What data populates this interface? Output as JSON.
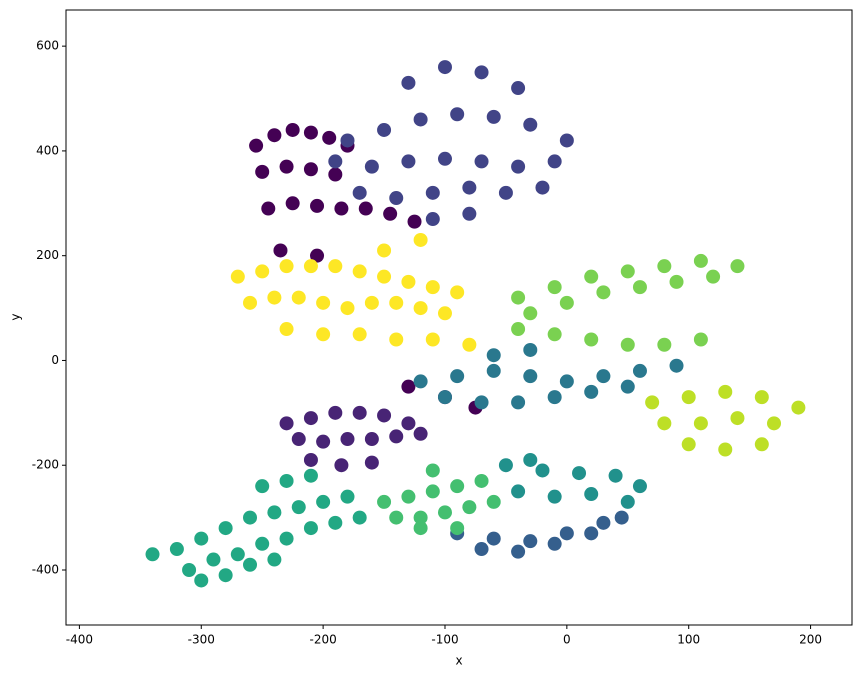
{
  "chart_data": {
    "type": "scatter",
    "x_label": "x",
    "y_label": "y",
    "xlim": [
      -411,
      234
    ],
    "ylim": [
      -505,
      669
    ],
    "xticks": [
      -400,
      -300,
      -200,
      -100,
      0,
      100,
      200
    ],
    "yticks": [
      -400,
      -200,
      0,
      200,
      400,
      600
    ],
    "grid": false,
    "series": [
      {
        "color": "#440154",
        "x": [
          -255,
          -240,
          -225,
          -210,
          -195,
          -180,
          -250,
          -230,
          -210,
          -190,
          -245,
          -225,
          -205,
          -185,
          -165,
          -145,
          -125,
          -235,
          -205,
          -130,
          -100,
          -75
        ],
        "y": [
          410,
          430,
          440,
          435,
          425,
          410,
          360,
          370,
          365,
          355,
          290,
          300,
          295,
          290,
          290,
          280,
          265,
          210,
          200,
          -50,
          -70,
          -90
        ]
      },
      {
        "color": "#482475",
        "x": [
          -230,
          -210,
          -190,
          -170,
          -150,
          -130,
          -220,
          -200,
          -180,
          -160,
          -140,
          -120,
          -210,
          -185,
          -160
        ],
        "y": [
          -120,
          -110,
          -100,
          -100,
          -105,
          -120,
          -150,
          -155,
          -150,
          -150,
          -145,
          -140,
          -190,
          -200,
          -195
        ]
      },
      {
        "color": "#414487",
        "x": [
          -180,
          -150,
          -120,
          -90,
          -60,
          -30,
          0,
          -190,
          -160,
          -130,
          -100,
          -70,
          -40,
          -10,
          -170,
          -140,
          -110,
          -80,
          -50,
          -20,
          -130,
          -100,
          -70,
          -40,
          -110,
          -80
        ],
        "y": [
          420,
          440,
          460,
          470,
          465,
          450,
          420,
          380,
          370,
          380,
          385,
          380,
          370,
          380,
          320,
          310,
          320,
          330,
          320,
          330,
          530,
          560,
          550,
          520,
          270,
          280
        ]
      },
      {
        "color": "#355f8d",
        "x": [
          -90,
          -60,
          -30,
          0,
          30,
          -70,
          -40,
          -10,
          20,
          45
        ],
        "y": [
          -330,
          -340,
          -345,
          -330,
          -310,
          -360,
          -365,
          -350,
          -330,
          -300
        ]
      },
      {
        "color": "#2a788e",
        "x": [
          -120,
          -90,
          -60,
          -30,
          0,
          30,
          60,
          90,
          -100,
          -70,
          -40,
          -10,
          20,
          50,
          -60,
          -30
        ],
        "y": [
          -40,
          -30,
          -20,
          -30,
          -40,
          -30,
          -20,
          -10,
          -70,
          -80,
          -80,
          -70,
          -60,
          -50,
          10,
          20
        ]
      },
      {
        "color": "#21918c",
        "x": [
          -50,
          -20,
          10,
          40,
          60,
          -40,
          -10,
          20,
          50,
          -30
        ],
        "y": [
          -200,
          -210,
          -215,
          -220,
          -240,
          -250,
          -260,
          -255,
          -270,
          -190
        ]
      },
      {
        "color": "#22a884",
        "x": [
          -320,
          -300,
          -280,
          -260,
          -240,
          -220,
          -200,
          -180,
          -310,
          -290,
          -270,
          -250,
          -230,
          -210,
          -190,
          -170,
          -300,
          -280,
          -260,
          -240,
          -250,
          -230,
          -210,
          -340
        ],
        "y": [
          -360,
          -340,
          -320,
          -300,
          -290,
          -280,
          -270,
          -260,
          -400,
          -380,
          -370,
          -350,
          -340,
          -320,
          -310,
          -300,
          -420,
          -410,
          -390,
          -380,
          -240,
          -230,
          -220,
          -370
        ]
      },
      {
        "color": "#44bf70",
        "x": [
          -150,
          -130,
          -110,
          -90,
          -70,
          -140,
          -120,
          -100,
          -80,
          -60,
          -120,
          -90,
          -110
        ],
        "y": [
          -270,
          -260,
          -250,
          -240,
          -230,
          -300,
          -300,
          -290,
          -280,
          -270,
          -320,
          -320,
          -210
        ]
      },
      {
        "color": "#7ad151",
        "x": [
          -40,
          -10,
          20,
          50,
          80,
          110,
          140,
          -30,
          0,
          30,
          60,
          90,
          120,
          -40,
          -10,
          20,
          50,
          80,
          110
        ],
        "y": [
          120,
          140,
          160,
          170,
          180,
          190,
          180,
          90,
          110,
          130,
          140,
          150,
          160,
          60,
          50,
          40,
          30,
          30,
          40
        ]
      },
      {
        "color": "#bddf26",
        "x": [
          70,
          100,
          130,
          160,
          190,
          80,
          110,
          140,
          170,
          100,
          130,
          160
        ],
        "y": [
          -80,
          -70,
          -60,
          -70,
          -90,
          -120,
          -120,
          -110,
          -120,
          -160,
          -170,
          -160
        ]
      },
      {
        "color": "#fde725",
        "x": [
          -270,
          -250,
          -230,
          -210,
          -190,
          -170,
          -150,
          -130,
          -110,
          -90,
          -260,
          -240,
          -220,
          -200,
          -180,
          -160,
          -140,
          -120,
          -100,
          -230,
          -200,
          -170,
          -140,
          -110,
          -80,
          -150,
          -120
        ],
        "y": [
          160,
          170,
          180,
          180,
          180,
          170,
          160,
          150,
          140,
          130,
          110,
          120,
          120,
          110,
          100,
          110,
          110,
          100,
          90,
          60,
          50,
          50,
          40,
          40,
          30,
          210,
          230
        ]
      }
    ]
  }
}
